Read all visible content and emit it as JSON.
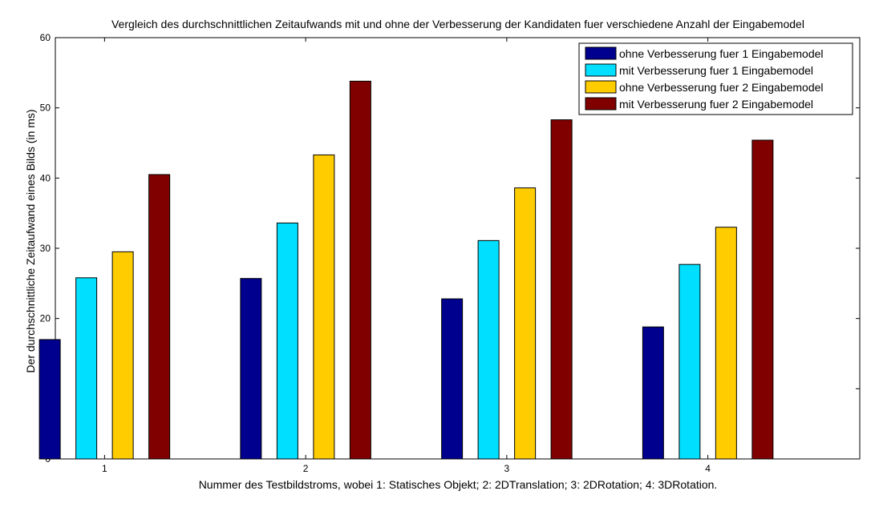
{
  "chart_data": {
    "type": "bar",
    "title": "Vergleich des durchschnittlichen Zeitaufwands mit und ohne der Verbesserung der Kandidaten fuer verschiedene Anzahl der Eingabemodel",
    "xlabel": "Nummer des Testbildstroms, wobei 1: Statisches Objekt; 2: 2DTranslation; 3: 2DRotation; 4: 3DRotation.",
    "ylabel": "Der durchschnittliche Zeitaufwand eines Bilds (in ms)",
    "categories": [
      "1",
      "2",
      "3",
      "4"
    ],
    "ylim": [
      0,
      60
    ],
    "yticks": [
      "0",
      "10",
      "20",
      "30",
      "40",
      "50",
      "60"
    ],
    "legend_position": "top-right",
    "grid": false,
    "series": [
      {
        "name": "ohne Verbesserung fuer 1 Eingabemodel",
        "color": "#00008f",
        "values": [
          17.0,
          25.7,
          22.8,
          18.8
        ]
      },
      {
        "name": "mit Verbesserung fuer 1 Eingabemodel",
        "color": "#00dfff",
        "values": [
          25.8,
          33.6,
          31.1,
          27.7
        ]
      },
      {
        "name": "ohne Verbesserung fuer 2 Eingabemodel",
        "color": "#ffcc00",
        "values": [
          29.5,
          43.3,
          38.6,
          33.0
        ]
      },
      {
        "name": "mit Verbesserung fuer 2 Eingabemodel",
        "color": "#800000",
        "values": [
          40.5,
          53.8,
          48.3,
          45.4
        ]
      }
    ]
  }
}
